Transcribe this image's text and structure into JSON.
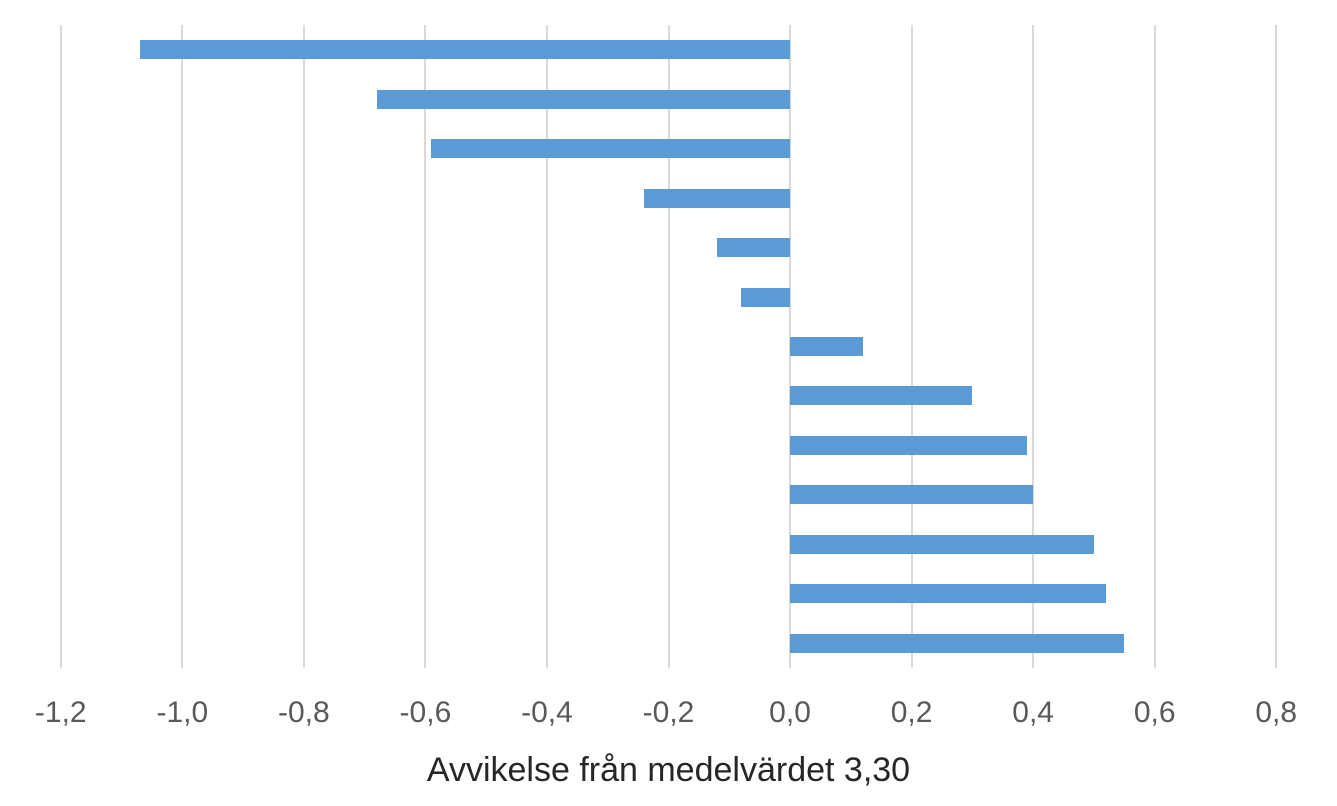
{
  "chart_data": {
    "type": "bar",
    "orientation": "horizontal",
    "title": "",
    "xlabel": "Avvikelse från medelvärdet 3,30",
    "ylabel": "",
    "values": [
      -1.07,
      -0.68,
      -0.59,
      -0.24,
      -0.12,
      -0.08,
      0.12,
      0.3,
      0.39,
      0.4,
      0.5,
      0.52,
      0.55
    ],
    "x_ticks": [
      {
        "label": "-1,2",
        "value": -1.2
      },
      {
        "label": "-1,0",
        "value": -1.0
      },
      {
        "label": "-0,8",
        "value": -0.8
      },
      {
        "label": "-0,6",
        "value": -0.6
      },
      {
        "label": "-0,4",
        "value": -0.4
      },
      {
        "label": "-0,2",
        "value": -0.2
      },
      {
        "label": "0,0",
        "value": 0.0
      },
      {
        "label": "0,2",
        "value": 0.2
      },
      {
        "label": "0,4",
        "value": 0.4
      },
      {
        "label": "0,6",
        "value": 0.6
      },
      {
        "label": "0,8",
        "value": 0.8
      }
    ],
    "xlim": [
      -1.3,
      0.9
    ],
    "grid": "vertical",
    "legend": "none",
    "colors": {
      "bar": "#5B9BD5",
      "gridline": "#D9D9D9",
      "tick_label": "#595959",
      "axis_title": "#262626",
      "background": "#FFFFFF"
    }
  }
}
